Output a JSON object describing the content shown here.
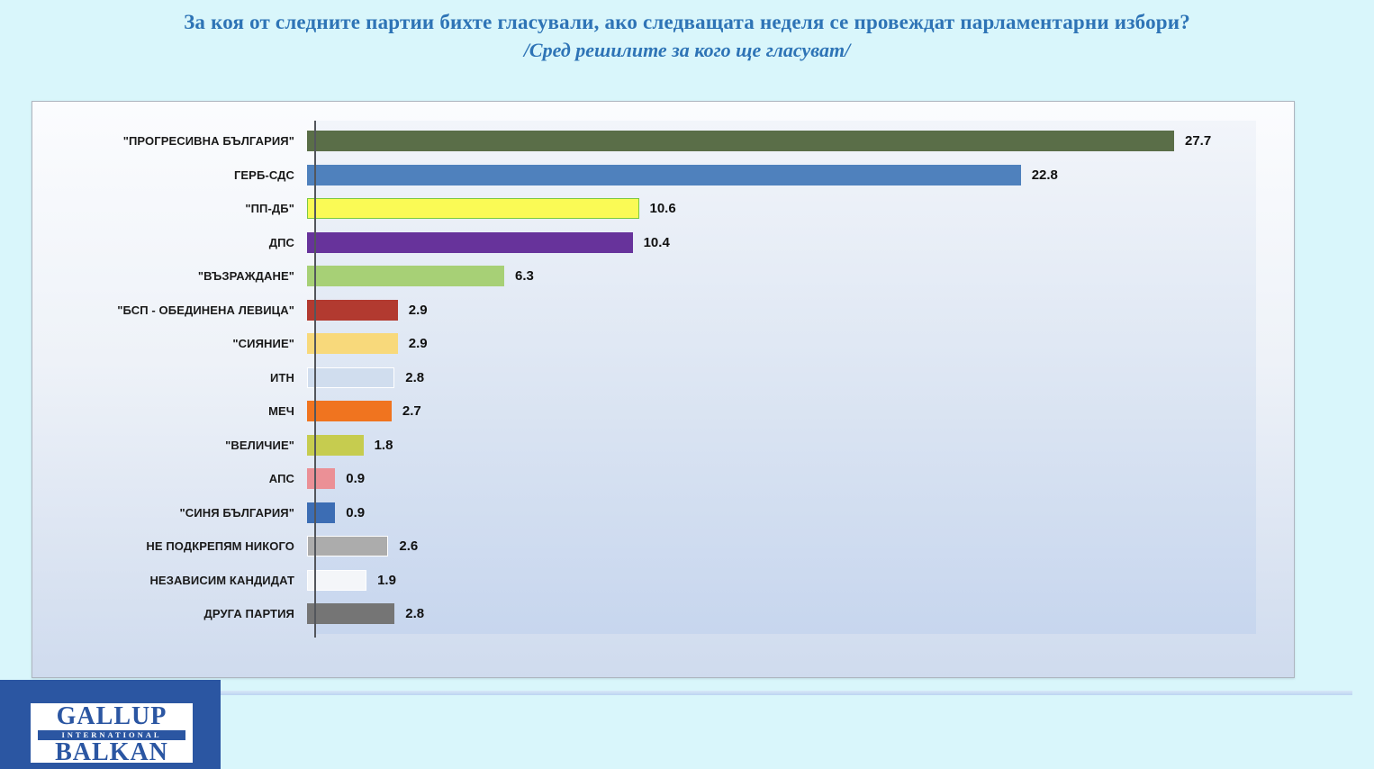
{
  "page": {
    "background": "#d9f6fb"
  },
  "header": {
    "title": "За коя от следните партии бихте гласували, ако следващата неделя се провеждат парламентарни избори?",
    "subtitle": "/Сред решилите за кого ще гласуват/",
    "text_color": "#2e74b6"
  },
  "chart_data": {
    "type": "bar",
    "orientation": "horizontal",
    "title": "",
    "xlabel": "",
    "ylabel": "",
    "xlim": [
      0,
      30
    ],
    "grid": false,
    "value_labels_shown": true,
    "axis_color": "#53565c",
    "categories": [
      "\"ПРОГРЕСИВНА БЪЛГАРИЯ\"",
      "ГЕРБ-СДС",
      "\"ПП-ДБ\"",
      "ДПС",
      "\"ВЪЗРАЖДАНЕ\"",
      "\"БСП - ОБЕДИНЕНА ЛЕВИЦА\"",
      "\"СИЯНИЕ\"",
      "ИТН",
      "МЕЧ",
      "\"ВЕЛИЧИЕ\"",
      "АПС",
      "\"СИНЯ БЪЛГАРИЯ\"",
      "НЕ ПОДКРЕПЯМ НИКОГО",
      "НЕЗАВИСИМ КАНДИДАТ",
      "ДРУГА ПАРТИЯ"
    ],
    "values": [
      27.7,
      22.8,
      10.6,
      10.4,
      6.3,
      2.9,
      2.9,
      2.8,
      2.7,
      1.8,
      0.9,
      0.9,
      2.6,
      1.9,
      2.8
    ],
    "bar_colors": [
      "#5a6e48",
      "#4f81bd",
      "#fafa55",
      "#67339b",
      "#a7d076",
      "#b23a30",
      "#f8d97b",
      "#d0ddee",
      "#f0741f",
      "#c6cc4f",
      "#eb9096",
      "#3c6db4",
      "#acacac",
      "#f4f6f9",
      "#757575"
    ],
    "bar_border_colors": [
      null,
      null,
      "#7ac943",
      null,
      null,
      null,
      null,
      "#ffffff",
      null,
      null,
      null,
      null,
      "#ffffff",
      "#ffffff",
      null
    ]
  },
  "logo": {
    "line1": "GALLUP",
    "line2": "INTERNATIONAL",
    "line3": "BALKAN",
    "square_color": "#2b56a2",
    "box_color": "#ffffff"
  }
}
